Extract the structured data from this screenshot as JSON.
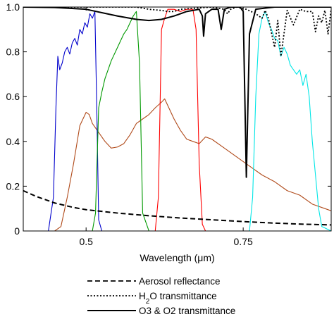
{
  "chart_data": {
    "type": "line",
    "xlabel": "Wavelength (μm)",
    "ylabel": "",
    "xlim": [
      0.4,
      0.89
    ],
    "ylim": [
      0,
      1.0
    ],
    "grid": false,
    "x_ticks": [
      {
        "value": 0.5,
        "label": "0.5"
      },
      {
        "value": 0.75,
        "label": "0.75"
      }
    ],
    "y_ticks": [
      {
        "value": 0,
        "label": "0"
      },
      {
        "value": 0.2,
        "label": "0.2"
      },
      {
        "value": 0.4,
        "label": "0.4"
      },
      {
        "value": 0.6,
        "label": "0.6"
      },
      {
        "value": 0.8,
        "label": "0.8"
      },
      {
        "value": 1.0,
        "label": "1.0"
      }
    ],
    "legend": {
      "placement": "below",
      "entries": [
        {
          "key": "aerosol",
          "style": "dashed",
          "label": "Aerosol reflectance"
        },
        {
          "key": "h2o",
          "style": "dotted",
          "label_main": "H",
          "label_sub": "2",
          "label_rest": "O transmittance"
        },
        {
          "key": "o3o2",
          "style": "solid",
          "label": "O3 & O2 transmittance"
        }
      ]
    },
    "series": [
      {
        "key": "aerosol",
        "style": "dashed",
        "color": "#000000",
        "x": [
          0.4,
          0.42,
          0.45,
          0.48,
          0.5,
          0.55,
          0.6,
          0.65,
          0.7,
          0.75,
          0.8,
          0.85,
          0.89
        ],
        "y": [
          0.18,
          0.155,
          0.125,
          0.105,
          0.095,
          0.08,
          0.068,
          0.058,
          0.05,
          0.042,
          0.035,
          0.03,
          0.027
        ]
      },
      {
        "key": "h2o",
        "style": "dotted",
        "color": "#000000",
        "x": [
          0.4,
          0.58,
          0.6,
          0.62,
          0.63,
          0.64,
          0.65,
          0.7,
          0.72,
          0.725,
          0.73,
          0.74,
          0.755,
          0.77,
          0.78,
          0.785,
          0.79,
          0.8,
          0.805,
          0.81,
          0.82,
          0.83,
          0.84,
          0.85,
          0.86,
          0.865,
          0.87,
          0.875,
          0.88,
          0.885,
          0.89
        ],
        "y": [
          1.0,
          1.0,
          0.99,
          0.985,
          0.98,
          0.98,
          0.99,
          1.0,
          0.99,
          0.97,
          0.99,
          1.0,
          0.99,
          0.97,
          0.95,
          0.985,
          0.95,
          0.82,
          0.94,
          0.78,
          0.985,
          0.92,
          0.99,
          0.98,
          0.98,
          0.89,
          0.96,
          0.93,
          0.985,
          0.88,
          0.99
        ]
      },
      {
        "key": "o3o2",
        "style": "solid",
        "color": "#000000",
        "x": [
          0.4,
          0.45,
          0.5,
          0.55,
          0.58,
          0.6,
          0.62,
          0.64,
          0.65,
          0.66,
          0.68,
          0.685,
          0.687,
          0.69,
          0.7,
          0.71,
          0.715,
          0.72,
          0.73,
          0.745,
          0.75,
          0.755,
          0.76,
          0.77,
          0.8,
          0.85,
          0.89
        ],
        "y": [
          1.0,
          0.998,
          0.99,
          0.96,
          0.945,
          0.94,
          0.945,
          0.96,
          0.97,
          0.98,
          0.99,
          0.96,
          0.87,
          0.97,
          0.99,
          0.99,
          0.9,
          0.99,
          1.0,
          1.0,
          0.98,
          0.24,
          0.88,
          0.99,
          1.0,
          1.0,
          1.0
        ]
      },
      {
        "key": "blue-band",
        "style": "solid",
        "color": "#0000cc",
        "x": [
          0.4,
          0.44,
          0.448,
          0.452,
          0.455,
          0.458,
          0.462,
          0.466,
          0.47,
          0.474,
          0.478,
          0.482,
          0.486,
          0.49,
          0.494,
          0.498,
          0.502,
          0.506,
          0.51,
          0.514,
          0.517,
          0.52,
          0.525,
          0.53
        ],
        "y": [
          0,
          0,
          0.15,
          0.55,
          0.78,
          0.72,
          0.75,
          0.8,
          0.82,
          0.79,
          0.84,
          0.86,
          0.83,
          0.9,
          0.88,
          0.93,
          0.91,
          0.97,
          0.95,
          0.98,
          0.55,
          0.05,
          0,
          0
        ]
      },
      {
        "key": "green-band",
        "style": "solid",
        "color": "#009900",
        "x": [
          0.4,
          0.51,
          0.515,
          0.52,
          0.525,
          0.53,
          0.54,
          0.55,
          0.56,
          0.565,
          0.57,
          0.575,
          0.58,
          0.585,
          0.59,
          0.6,
          0.89
        ],
        "y": [
          0,
          0,
          0.08,
          0.55,
          0.62,
          0.68,
          0.76,
          0.82,
          0.88,
          0.9,
          0.93,
          0.96,
          0.98,
          0.75,
          0.08,
          0,
          0
        ]
      },
      {
        "key": "red-band",
        "style": "solid",
        "color": "#ff0000",
        "x": [
          0.4,
          0.61,
          0.615,
          0.62,
          0.625,
          0.63,
          0.64,
          0.65,
          0.66,
          0.67,
          0.675,
          0.68,
          0.685,
          0.69,
          0.89
        ],
        "y": [
          0,
          0,
          0.15,
          0.9,
          0.95,
          0.99,
          0.99,
          0.98,
          0.99,
          0.99,
          0.9,
          0.3,
          0.03,
          0,
          0
        ]
      },
      {
        "key": "nir-band",
        "style": "solid",
        "color": "#00e6e6",
        "x": [
          0.4,
          0.76,
          0.765,
          0.77,
          0.775,
          0.78,
          0.785,
          0.79,
          0.795,
          0.8,
          0.805,
          0.81,
          0.815,
          0.82,
          0.825,
          0.83,
          0.835,
          0.84,
          0.845,
          0.85,
          0.855,
          0.86,
          0.865,
          0.87,
          0.875,
          0.89
        ],
        "y": [
          0,
          0,
          0.15,
          0.6,
          0.88,
          0.95,
          0.98,
          0.93,
          0.9,
          0.86,
          0.85,
          0.78,
          0.82,
          0.79,
          0.74,
          0.72,
          0.7,
          0.72,
          0.65,
          0.7,
          0.6,
          0.4,
          0.25,
          0.1,
          0.02,
          0
        ]
      },
      {
        "key": "reflectance",
        "style": "solid",
        "color": "#b04a1a",
        "x": [
          0.4,
          0.45,
          0.46,
          0.47,
          0.48,
          0.49,
          0.495,
          0.5,
          0.505,
          0.51,
          0.52,
          0.53,
          0.54,
          0.55,
          0.56,
          0.57,
          0.58,
          0.59,
          0.6,
          0.61,
          0.62,
          0.625,
          0.63,
          0.64,
          0.65,
          0.66,
          0.67,
          0.68,
          0.69,
          0.7,
          0.72,
          0.74,
          0.76,
          0.78,
          0.8,
          0.82,
          0.84,
          0.86,
          0.88,
          0.89
        ],
        "y": [
          0,
          0,
          0.02,
          0.15,
          0.3,
          0.47,
          0.5,
          0.53,
          0.52,
          0.48,
          0.44,
          0.4,
          0.37,
          0.375,
          0.39,
          0.43,
          0.48,
          0.5,
          0.52,
          0.55,
          0.575,
          0.59,
          0.56,
          0.5,
          0.45,
          0.41,
          0.4,
          0.39,
          0.42,
          0.41,
          0.37,
          0.33,
          0.29,
          0.25,
          0.22,
          0.18,
          0.16,
          0.12,
          0.1,
          0.09
        ]
      }
    ]
  }
}
